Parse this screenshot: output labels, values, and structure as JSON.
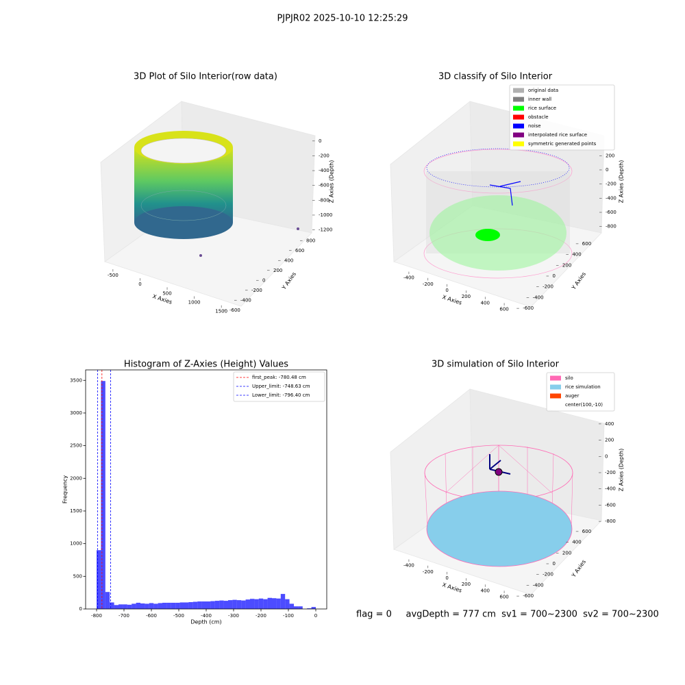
{
  "suptitle": "PJPJR02 2025-10-10 12:25:29",
  "footer": "flag = 0     avgDepth = 777 cm  sv1 = 700~2300  sv2 = 700~2300",
  "chart_data": [
    {
      "type": "scatter3d",
      "title": "3D Plot of Silo Interior(row data)",
      "xlabel": "X Axies",
      "ylabel": "Y Axies",
      "zlabel": "Z Axies (Depth)",
      "xlim": [
        -650,
        1700
      ],
      "xticks": [
        -500,
        0,
        500,
        1000,
        1500
      ],
      "ylim": [
        -700,
        900
      ],
      "yticks": [
        -600,
        -400,
        -200,
        0,
        200,
        400,
        600,
        800
      ],
      "zlim": [
        -1250,
        100
      ],
      "zticks": [
        0,
        -200,
        -400,
        -600,
        -800,
        -1000,
        -1200
      ]
    },
    {
      "type": "scatter3d",
      "title": "3D classify of Silo Interior",
      "xlabel": "X Axies",
      "ylabel": "Y Axies",
      "zlabel": "Z Axies (Depth)",
      "xlim": [
        -500,
        700
      ],
      "xticks": [
        -400,
        -200,
        0,
        200,
        400,
        600
      ],
      "ylim": [
        -700,
        700
      ],
      "yticks": [
        -600,
        -400,
        -200,
        0,
        200,
        400,
        600
      ],
      "zlim": [
        -900,
        300
      ],
      "zticks": [
        200,
        0,
        -200,
        -400,
        -600,
        -800
      ],
      "series": [
        {
          "name": "original data",
          "color": "#b0b0b0"
        },
        {
          "name": "inner wall",
          "color": "#808080"
        },
        {
          "name": "rice surface",
          "color": "#00ff00"
        },
        {
          "name": "obstacle",
          "color": "#ff0000"
        },
        {
          "name": "noise",
          "color": "#0000ff"
        },
        {
          "name": "interpolated rice surface",
          "color": "#800080"
        },
        {
          "name": "symmetric generated points",
          "color": "#ffff00"
        }
      ]
    },
    {
      "type": "histogram",
      "title": "Histogram of Z-Axies (Height) Values",
      "xlabel": "Depth (cm)",
      "ylabel": "Frequency",
      "color": "#0000ff",
      "opacity": 0.7,
      "xlim": [
        -840,
        40
      ],
      "xticks": [
        -800,
        -700,
        -600,
        -500,
        -400,
        -300,
        -200,
        -100,
        0
      ],
      "ylim": [
        0,
        3660
      ],
      "yticks": [
        0,
        500,
        1000,
        1500,
        2000,
        2500,
        3000,
        3500
      ],
      "bins": [
        -800,
        -784,
        -768,
        -752,
        -736,
        -720,
        -704,
        -688,
        -672,
        -656,
        -640,
        -624,
        -608,
        -592,
        -576,
        -560,
        -544,
        -528,
        -512,
        -496,
        -480,
        -464,
        -448,
        -432,
        -416,
        -400,
        -384,
        -368,
        -352,
        -336,
        -320,
        -304,
        -288,
        -272,
        -256,
        -240,
        -224,
        -208,
        -192,
        -176,
        -160,
        -144,
        -128,
        -112,
        -96,
        -80,
        -64,
        -48,
        -32,
        -16,
        0
      ],
      "values": [
        900,
        3490,
        260,
        100,
        60,
        70,
        70,
        65,
        80,
        95,
        85,
        80,
        90,
        80,
        90,
        95,
        95,
        95,
        95,
        100,
        100,
        105,
        110,
        115,
        115,
        115,
        120,
        125,
        130,
        125,
        135,
        140,
        135,
        130,
        145,
        155,
        150,
        160,
        150,
        170,
        165,
        160,
        230,
        150,
        80,
        40,
        40,
        0,
        10,
        30
      ],
      "lines": [
        {
          "name": "first_peak: -780.48 cm",
          "value": -780.48,
          "color": "#ff0000"
        },
        {
          "name": "Upper_limit: -748.63 cm",
          "value": -748.63,
          "color": "#0000ff"
        },
        {
          "name": "Lower_limit: -796.40 cm",
          "value": -796.4,
          "color": "#0000ff"
        }
      ]
    },
    {
      "type": "surface3d",
      "title": "3D simulation of Silo Interior",
      "xlabel": "X Axies",
      "ylabel": "Y Axies",
      "zlabel": "Z Axies (Depth)",
      "xlim": [
        -500,
        700
      ],
      "xticks": [
        -400,
        -200,
        0,
        200,
        400,
        600
      ],
      "ylim": [
        -700,
        700
      ],
      "yticks": [
        -600,
        -400,
        -200,
        0,
        200,
        400,
        600
      ],
      "zlim": [
        -900,
        500
      ],
      "zticks": [
        400,
        200,
        0,
        -200,
        -400,
        -600,
        -800
      ],
      "series": [
        {
          "name": "silo",
          "color": "#ff69b4"
        },
        {
          "name": "rice simulation",
          "color": "#87ceeb"
        },
        {
          "name": "auger",
          "color": "#ff4500"
        },
        {
          "name": "center(100,-10)",
          "color": "none"
        }
      ]
    }
  ]
}
